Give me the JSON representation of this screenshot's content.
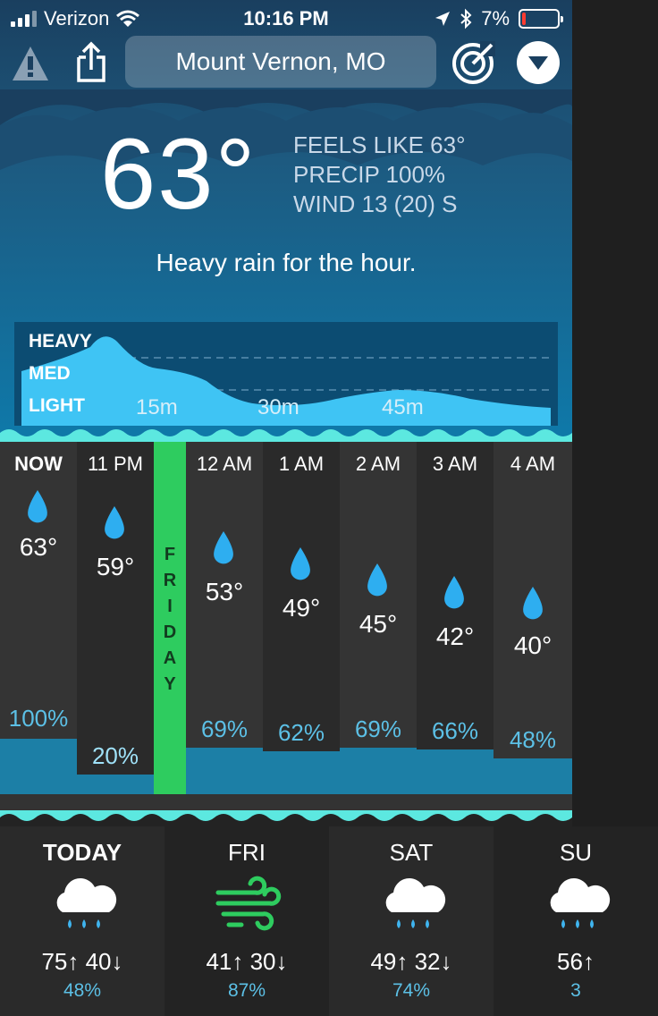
{
  "status_bar": {
    "carrier": "Verizon",
    "time": "10:16 PM",
    "battery": "7%"
  },
  "toolbar": {
    "location": "Mount Vernon, MO"
  },
  "current": {
    "temp": "63°",
    "feels_like": "FEELS LIKE 63°",
    "precip": "PRECIP 100%",
    "wind": "WIND 13 (20) S",
    "summary": "Heavy rain for the hour."
  },
  "precip_chart": {
    "levels": [
      "HEAVY",
      "MED",
      "LIGHT"
    ],
    "ticks": [
      "15m",
      "30m",
      "45m"
    ]
  },
  "hourly": {
    "day_divider": "FRIDAY",
    "hours": [
      {
        "label": "NOW",
        "temp": "63°",
        "precip": "100%",
        "bold": true
      },
      {
        "label": "11 PM",
        "temp": "59°",
        "precip": "20%"
      },
      {
        "label": "12 AM",
        "temp": "53°",
        "precip": "69%"
      },
      {
        "label": "1 AM",
        "temp": "49°",
        "precip": "62%"
      },
      {
        "label": "2 AM",
        "temp": "45°",
        "precip": "69%"
      },
      {
        "label": "3 AM",
        "temp": "42°",
        "precip": "66%"
      },
      {
        "label": "4 AM",
        "temp": "40°",
        "precip": "48%"
      }
    ]
  },
  "daily": [
    {
      "name": "TODAY",
      "icon": "rain-cloud-icon",
      "hilo": "75↑ 40↓",
      "precip": "48%"
    },
    {
      "name": "FRI",
      "icon": "wind-icon",
      "hilo": "41↑ 30↓",
      "precip": "87%"
    },
    {
      "name": "SAT",
      "icon": "rain-cloud-icon",
      "hilo": "49↑ 32↓",
      "precip": "74%"
    },
    {
      "name": "SU",
      "icon": "rain-cloud-icon",
      "hilo": "56↑",
      "precip": "3"
    }
  ],
  "colors": {
    "accent_green": "#2ecc5f",
    "precip_blue": "#5cc0e6",
    "bar_blue": "#1c7fa6",
    "wave_teal": "#5ce8e0",
    "battery_red": "#ff3b30"
  }
}
